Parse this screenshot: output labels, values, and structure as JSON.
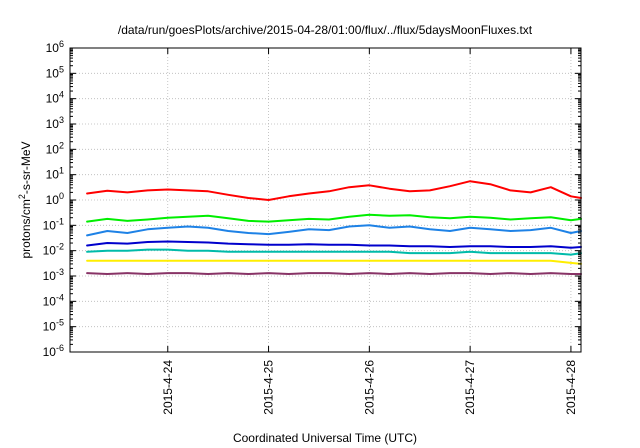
{
  "chart_data": {
    "type": "line",
    "title": "/data/run/goesPlots/archive/2015-04-28/01:00/flux/../flux/5daysMoonFluxes.txt",
    "xlabel": "Coordinated Universal Time (UTC)",
    "ylabel": {
      "prefix": "protons/cm",
      "superscript": "2",
      "suffix": "-s-sr-MeV"
    },
    "y_scale": "log",
    "ylim_exponent": [
      -6,
      6
    ],
    "yticks": [
      {
        "base": "10",
        "exp": "6"
      },
      {
        "base": "10",
        "exp": "5"
      },
      {
        "base": "10",
        "exp": "4"
      },
      {
        "base": "10",
        "exp": "3"
      },
      {
        "base": "10",
        "exp": "2"
      },
      {
        "base": "10",
        "exp": "1"
      },
      {
        "base": "10",
        "exp": "0"
      },
      {
        "base": "10",
        "exp": "-1"
      },
      {
        "base": "10",
        "exp": "-2"
      },
      {
        "base": "10",
        "exp": "-3"
      },
      {
        "base": "10",
        "exp": "-4"
      },
      {
        "base": "10",
        "exp": "-5"
      },
      {
        "base": "10",
        "exp": "-6"
      }
    ],
    "xlim_days": [
      -0.97,
      4.1
    ],
    "xticks": [
      {
        "label": "2015-4-24",
        "day": 0
      },
      {
        "label": "2015-4-25",
        "day": 1
      },
      {
        "label": "2015-4-26",
        "day": 2
      },
      {
        "label": "2015-4-27",
        "day": 3
      },
      {
        "label": "2015-4-28",
        "day": 4
      }
    ],
    "grid": true,
    "series": [
      {
        "color": "#ff0000",
        "x": [
          -0.8,
          -0.6,
          -0.4,
          -0.2,
          0.0,
          0.2,
          0.4,
          0.6,
          0.8,
          1.0,
          1.2,
          1.4,
          1.6,
          1.8,
          2.0,
          2.2,
          2.4,
          2.6,
          2.8,
          3.0,
          3.2,
          3.4,
          3.6,
          3.8,
          4.0,
          4.1
        ],
        "y": [
          1.8,
          2.3,
          2.0,
          2.4,
          2.6,
          2.4,
          2.2,
          1.6,
          1.2,
          1.0,
          1.4,
          1.8,
          2.2,
          3.2,
          3.8,
          2.8,
          2.2,
          2.4,
          3.5,
          5.5,
          4.2,
          2.4,
          2.0,
          3.2,
          1.4,
          1.2
        ]
      },
      {
        "color": "#00ee00",
        "x": [
          -0.8,
          -0.6,
          -0.4,
          -0.2,
          0.0,
          0.2,
          0.4,
          0.6,
          0.8,
          1.0,
          1.2,
          1.4,
          1.6,
          1.8,
          2.0,
          2.2,
          2.4,
          2.6,
          2.8,
          3.0,
          3.2,
          3.4,
          3.6,
          3.8,
          4.0,
          4.1
        ],
        "y": [
          0.14,
          0.18,
          0.15,
          0.17,
          0.2,
          0.22,
          0.24,
          0.19,
          0.15,
          0.14,
          0.16,
          0.18,
          0.17,
          0.22,
          0.26,
          0.24,
          0.25,
          0.21,
          0.19,
          0.22,
          0.2,
          0.17,
          0.19,
          0.21,
          0.16,
          0.18
        ]
      },
      {
        "color": "#1e82e6",
        "x": [
          -0.8,
          -0.6,
          -0.4,
          -0.2,
          0.0,
          0.2,
          0.4,
          0.6,
          0.8,
          1.0,
          1.2,
          1.4,
          1.6,
          1.8,
          2.0,
          2.2,
          2.4,
          2.6,
          2.8,
          3.0,
          3.2,
          3.4,
          3.6,
          3.8,
          4.0,
          4.1
        ],
        "y": [
          0.04,
          0.06,
          0.05,
          0.07,
          0.08,
          0.09,
          0.08,
          0.06,
          0.05,
          0.045,
          0.055,
          0.07,
          0.065,
          0.09,
          0.1,
          0.08,
          0.09,
          0.07,
          0.06,
          0.08,
          0.07,
          0.06,
          0.065,
          0.08,
          0.05,
          0.06
        ]
      },
      {
        "color": "#0000cc",
        "x": [
          -0.8,
          -0.6,
          -0.4,
          -0.2,
          0.0,
          0.2,
          0.4,
          0.6,
          0.8,
          1.0,
          1.2,
          1.4,
          1.6,
          1.8,
          2.0,
          2.2,
          2.4,
          2.6,
          2.8,
          3.0,
          3.2,
          3.4,
          3.6,
          3.8,
          4.0,
          4.1
        ],
        "y": [
          0.016,
          0.02,
          0.019,
          0.022,
          0.023,
          0.022,
          0.021,
          0.019,
          0.018,
          0.017,
          0.017,
          0.018,
          0.017,
          0.017,
          0.016,
          0.016,
          0.015,
          0.015,
          0.014,
          0.015,
          0.015,
          0.014,
          0.014,
          0.015,
          0.013,
          0.014
        ]
      },
      {
        "color": "#00bbaa",
        "x": [
          -0.8,
          -0.6,
          -0.4,
          -0.2,
          0.0,
          0.2,
          0.4,
          0.6,
          0.8,
          1.0,
          1.2,
          1.4,
          1.6,
          1.8,
          2.0,
          2.2,
          2.4,
          2.6,
          2.8,
          3.0,
          3.2,
          3.4,
          3.6,
          3.8,
          4.0,
          4.1
        ],
        "y": [
          0.009,
          0.01,
          0.01,
          0.011,
          0.011,
          0.01,
          0.01,
          0.009,
          0.009,
          0.009,
          0.009,
          0.009,
          0.009,
          0.009,
          0.009,
          0.009,
          0.008,
          0.008,
          0.008,
          0.009,
          0.008,
          0.008,
          0.008,
          0.008,
          0.007,
          0.008
        ]
      },
      {
        "color": "#ffee00",
        "x": [
          -0.8,
          -0.6,
          -0.4,
          -0.2,
          0.0,
          0.2,
          0.4,
          0.6,
          0.8,
          1.0,
          1.2,
          1.4,
          1.6,
          1.8,
          2.0,
          2.2,
          2.4,
          2.6,
          2.8,
          3.0,
          3.2,
          3.4,
          3.6,
          3.8,
          4.0,
          4.1
        ],
        "y": [
          0.004,
          0.004,
          0.004,
          0.004,
          0.004,
          0.004,
          0.004,
          0.004,
          0.004,
          0.004,
          0.004,
          0.004,
          0.004,
          0.004,
          0.004,
          0.004,
          0.004,
          0.004,
          0.004,
          0.004,
          0.004,
          0.004,
          0.004,
          0.004,
          0.0033,
          0.003
        ]
      },
      {
        "color": "#883366",
        "x": [
          -0.8,
          -0.6,
          -0.4,
          -0.2,
          0.0,
          0.2,
          0.4,
          0.6,
          0.8,
          1.0,
          1.2,
          1.4,
          1.6,
          1.8,
          2.0,
          2.2,
          2.4,
          2.6,
          2.8,
          3.0,
          3.2,
          3.4,
          3.6,
          3.8,
          4.0,
          4.1
        ],
        "y": [
          0.0013,
          0.0012,
          0.0013,
          0.0012,
          0.0013,
          0.0013,
          0.0012,
          0.0013,
          0.0012,
          0.0013,
          0.0012,
          0.0013,
          0.0013,
          0.0012,
          0.0013,
          0.0012,
          0.0013,
          0.0012,
          0.0013,
          0.0013,
          0.0012,
          0.0013,
          0.0012,
          0.0013,
          0.0012,
          0.0012
        ]
      }
    ]
  }
}
